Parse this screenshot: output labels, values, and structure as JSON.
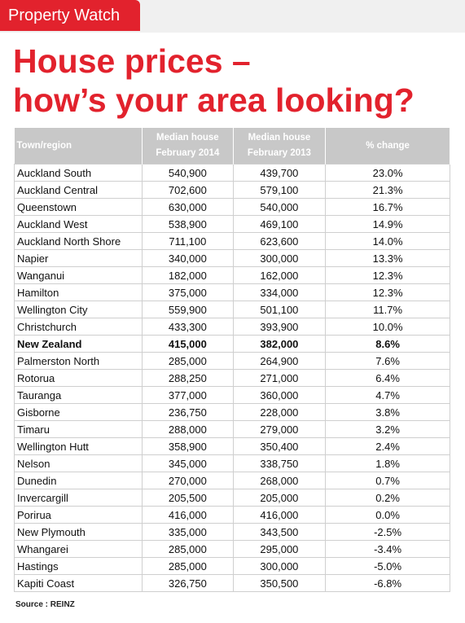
{
  "header": {
    "tag": "Property Watch",
    "title": [
      "House prices –",
      "how’s your area looking?"
    ]
  },
  "table": {
    "columns": [
      [
        "Town/region"
      ],
      [
        "Median house",
        "February 2014"
      ],
      [
        "Median house",
        "February 2013"
      ],
      [
        "% change"
      ]
    ],
    "emphasis_row": 10,
    "rows": [
      [
        "Auckland South",
        "540,900",
        "439,700",
        "23.0%"
      ],
      [
        "Auckland Central",
        "702,600",
        "579,100",
        "21.3%"
      ],
      [
        "Queenstown",
        "630,000",
        "540,000",
        "16.7%"
      ],
      [
        "Auckland West",
        "538,900",
        "469,100",
        "14.9%"
      ],
      [
        "Auckland North Shore",
        "711,100",
        "623,600",
        "14.0%"
      ],
      [
        "Napier",
        "340,000",
        "300,000",
        "13.3%"
      ],
      [
        "Wanganui",
        "182,000",
        "162,000",
        "12.3%"
      ],
      [
        "Hamilton",
        "375,000",
        "334,000",
        "12.3%"
      ],
      [
        "Wellington City",
        "559,900",
        "501,100",
        "11.7%"
      ],
      [
        "Christchurch",
        "433,300",
        "393,900",
        "10.0%"
      ],
      [
        "New Zealand",
        "415,000",
        "382,000",
        "8.6%"
      ],
      [
        "Palmerston North",
        "285,000",
        "264,900",
        "7.6%"
      ],
      [
        "Rotorua",
        "288,250",
        "271,000",
        "6.4%"
      ],
      [
        "Tauranga",
        "377,000",
        "360,000",
        "4.7%"
      ],
      [
        "Gisborne",
        "236,750",
        "228,000",
        "3.8%"
      ],
      [
        "Timaru",
        "288,000",
        "279,000",
        "3.2%"
      ],
      [
        "Wellington Hutt",
        "358,900",
        "350,400",
        "2.4%"
      ],
      [
        "Nelson",
        "345,000",
        "338,750",
        "1.8%"
      ],
      [
        "Dunedin",
        "270,000",
        "268,000",
        "0.7%"
      ],
      [
        "Invercargill",
        "205,500",
        "205,000",
        "0.2%"
      ],
      [
        "Porirua",
        "416,000",
        "416,000",
        "0.0%"
      ],
      [
        "New Plymouth",
        "335,000",
        "343,500",
        "-2.5%"
      ],
      [
        "Whangarei",
        "285,000",
        "295,000",
        "-3.4%"
      ],
      [
        "Hastings",
        "285,000",
        "300,000",
        "-5.0%"
      ],
      [
        "Kapiti Coast",
        "326,750",
        "350,500",
        "-6.8%"
      ]
    ]
  },
  "source": "Source : REINZ"
}
